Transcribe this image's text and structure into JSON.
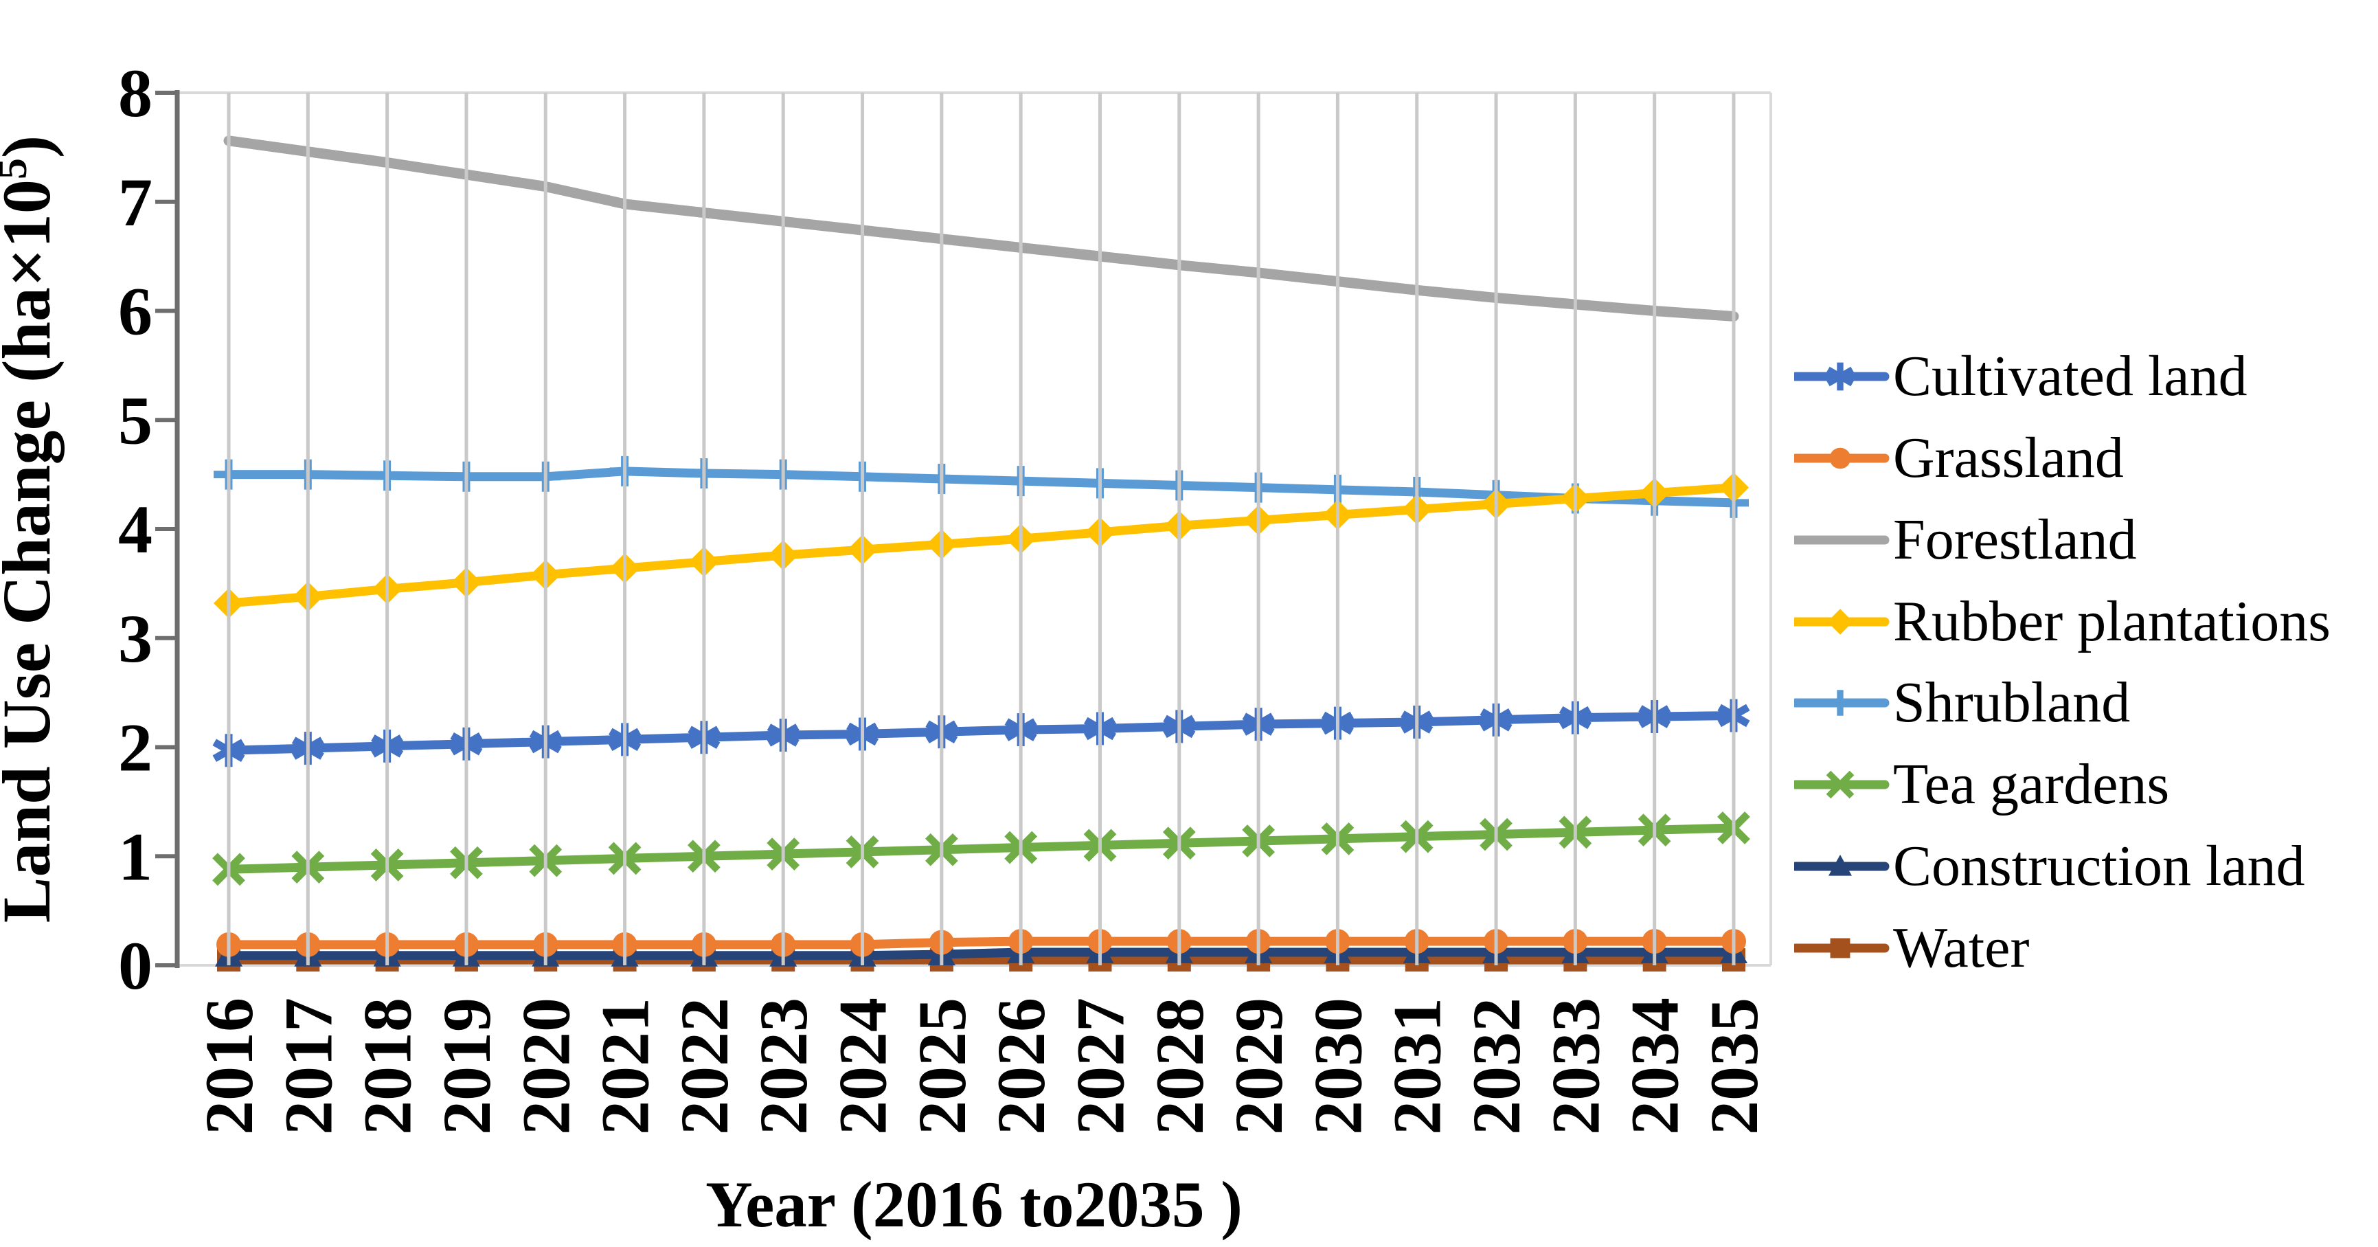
{
  "figure": {
    "y_axis": {
      "title_main": "Land Use Change (ha×10",
      "title_sup": "5",
      "title_close": ")",
      "tick_labels": [
        "0",
        "1",
        "2",
        "3",
        "4",
        "5",
        "6",
        "7",
        "8"
      ],
      "min": 0,
      "max": 8
    },
    "x_axis": {
      "title": "Year (2016 to2035 )",
      "tick_labels": [
        "2016",
        "2017",
        "2018",
        "2019",
        "2020",
        "2021",
        "2022",
        "2023",
        "2024",
        "2025",
        "2026",
        "2027",
        "2028",
        "2029",
        "2030",
        "2031",
        "2032",
        "2033",
        "2034",
        "2035"
      ]
    },
    "colors": {
      "gridline": "#C9C9C9",
      "axis_line": "#6E6E6E",
      "plot_border": "#D9D9D9",
      "text": "#000000"
    }
  },
  "chart_data": {
    "type": "line",
    "title": "",
    "xlabel": "Year (2016 to2035 )",
    "ylabel": "Land Use Change (ha×10^5)",
    "ylim": [
      0,
      8
    ],
    "grid": "vertical",
    "legend_position": "right",
    "x": [
      2016,
      2017,
      2018,
      2019,
      2020,
      2021,
      2022,
      2023,
      2024,
      2025,
      2026,
      2027,
      2028,
      2029,
      2030,
      2031,
      2032,
      2033,
      2034,
      2035
    ],
    "series": [
      {
        "name": "Cultivated land",
        "color": "#4472C4",
        "marker": "asterisk",
        "values": [
          1.97,
          1.99,
          2.01,
          2.03,
          2.05,
          2.07,
          2.09,
          2.11,
          2.12,
          2.14,
          2.16,
          2.17,
          2.19,
          2.21,
          2.22,
          2.23,
          2.25,
          2.27,
          2.28,
          2.29
        ]
      },
      {
        "name": "Grassland",
        "color": "#ED7D31",
        "marker": "circle",
        "values": [
          0.19,
          0.19,
          0.19,
          0.19,
          0.19,
          0.19,
          0.19,
          0.19,
          0.19,
          0.21,
          0.22,
          0.22,
          0.22,
          0.22,
          0.22,
          0.22,
          0.22,
          0.22,
          0.22,
          0.22
        ]
      },
      {
        "name": "Forestland",
        "color": "#A5A5A5",
        "marker": "none",
        "values": [
          7.56,
          7.46,
          7.36,
          7.25,
          7.14,
          6.98,
          6.9,
          6.82,
          6.74,
          6.66,
          6.58,
          6.5,
          6.42,
          6.35,
          6.27,
          6.19,
          6.12,
          6.06,
          6.0,
          5.95
        ]
      },
      {
        "name": "Rubber plantations",
        "color": "#FFC000",
        "marker": "diamond",
        "values": [
          3.32,
          3.38,
          3.45,
          3.51,
          3.58,
          3.64,
          3.7,
          3.76,
          3.81,
          3.86,
          3.91,
          3.97,
          4.03,
          4.08,
          4.13,
          4.18,
          4.23,
          4.28,
          4.33,
          4.38
        ]
      },
      {
        "name": "Shrubland",
        "color": "#5B9BD5",
        "marker": "plus",
        "values": [
          4.5,
          4.5,
          4.49,
          4.48,
          4.48,
          4.53,
          4.51,
          4.5,
          4.48,
          4.46,
          4.44,
          4.42,
          4.4,
          4.38,
          4.36,
          4.34,
          4.31,
          4.28,
          4.26,
          4.24
        ]
      },
      {
        "name": "Tea gardens",
        "color": "#70AD47",
        "marker": "x",
        "values": [
          0.88,
          0.9,
          0.92,
          0.94,
          0.96,
          0.98,
          1.0,
          1.02,
          1.04,
          1.06,
          1.08,
          1.1,
          1.12,
          1.14,
          1.16,
          1.18,
          1.2,
          1.22,
          1.24,
          1.26
        ]
      },
      {
        "name": "Construction land",
        "color": "#264478",
        "marker": "triangle",
        "values": [
          0.09,
          0.09,
          0.09,
          0.09,
          0.09,
          0.09,
          0.09,
          0.09,
          0.09,
          0.1,
          0.12,
          0.12,
          0.12,
          0.12,
          0.12,
          0.12,
          0.12,
          0.12,
          0.12,
          0.12
        ]
      },
      {
        "name": "Water",
        "color": "#A5511D",
        "marker": "square",
        "values": [
          0.05,
          0.05,
          0.05,
          0.05,
          0.05,
          0.05,
          0.05,
          0.05,
          0.05,
          0.05,
          0.05,
          0.05,
          0.05,
          0.05,
          0.05,
          0.05,
          0.05,
          0.05,
          0.05,
          0.05
        ]
      }
    ]
  }
}
